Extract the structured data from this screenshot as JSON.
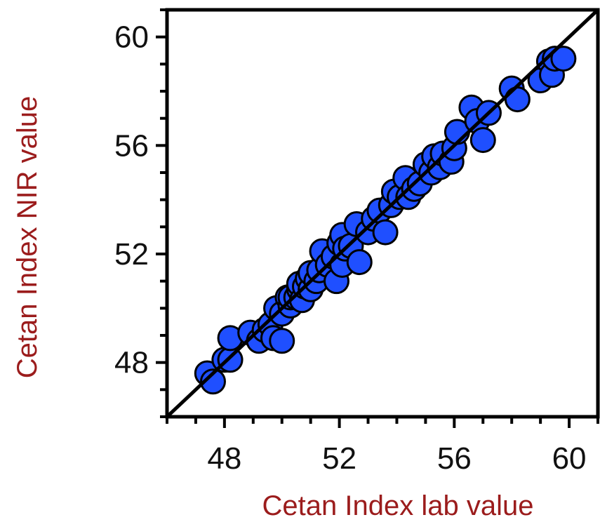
{
  "chart_data": {
    "type": "scatter",
    "xlabel": "Cetan Index lab value",
    "ylabel": "Cetan Index NIR value",
    "xlim": [
      46,
      61
    ],
    "ylim": [
      46,
      61
    ],
    "x_ticks": [
      48,
      52,
      56,
      60
    ],
    "y_ticks": [
      48,
      52,
      56,
      60
    ],
    "grid": false,
    "legend": "none",
    "colors": {
      "point_fill": "#1f4fff",
      "point_edge": "#000000",
      "line": "#000000",
      "axis_title": "#9b1c1c"
    },
    "reference_line": {
      "x": [
        46,
        61
      ],
      "y": [
        46,
        61
      ]
    },
    "x": [
      47.4,
      47.6,
      48.0,
      48.2,
      48.2,
      48.9,
      49.2,
      49.4,
      49.6,
      49.8,
      49.7,
      50.0,
      50.0,
      50.2,
      50.3,
      50.3,
      50.5,
      50.6,
      50.6,
      50.7,
      50.8,
      50.9,
      51.0,
      51.0,
      51.2,
      51.3,
      51.4,
      51.6,
      51.8,
      51.9,
      52.0,
      52.1,
      52.1,
      52.2,
      52.4,
      52.6,
      52.7,
      53.0,
      53.2,
      53.4,
      53.6,
      53.8,
      53.9,
      54.1,
      54.3,
      54.4,
      54.6,
      54.8,
      55.0,
      55.2,
      55.3,
      55.5,
      55.6,
      55.9,
      56.0,
      56.1,
      56.6,
      56.8,
      57.0,
      57.2,
      58.0,
      58.2,
      59.0,
      59.3,
      59.4,
      59.5,
      59.8
    ],
    "y": [
      47.6,
      47.3,
      48.1,
      48.1,
      48.9,
      49.1,
      48.8,
      49.2,
      49.4,
      50.0,
      48.9,
      49.8,
      48.8,
      50.4,
      50.1,
      50.4,
      50.4,
      50.7,
      50.9,
      50.3,
      50.8,
      51.1,
      50.7,
      51.3,
      51.0,
      51.4,
      52.1,
      51.6,
      51.9,
      51.0,
      52.4,
      52.7,
      51.6,
      52.2,
      52.3,
      53.1,
      51.7,
      52.8,
      53.3,
      53.6,
      52.8,
      53.8,
      54.3,
      54.1,
      54.8,
      54.1,
      54.4,
      54.6,
      55.3,
      55.0,
      55.6,
      55.2,
      55.7,
      55.4,
      55.9,
      56.5,
      57.4,
      56.9,
      56.2,
      57.2,
      58.1,
      57.7,
      58.4,
      59.1,
      58.6,
      59.2,
      59.2
    ]
  }
}
